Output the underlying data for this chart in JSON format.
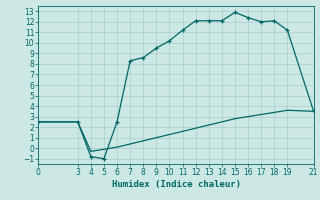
{
  "xlabel": "Humidex (Indice chaleur)",
  "background_color": "#cce8e4",
  "line_color": "#006666",
  "grid_color": "#aacccc",
  "xlim": [
    0,
    21
  ],
  "ylim": [
    -1.5,
    13.5
  ],
  "xticks": [
    0,
    3,
    4,
    5,
    6,
    7,
    8,
    9,
    10,
    11,
    12,
    13,
    14,
    15,
    16,
    17,
    18,
    19,
    21
  ],
  "yticks": [
    -1,
    0,
    1,
    2,
    3,
    4,
    5,
    6,
    7,
    8,
    9,
    10,
    11,
    12,
    13
  ],
  "line1_x": [
    0,
    3,
    4,
    5,
    6,
    7,
    8,
    9,
    10,
    11,
    12,
    13,
    14,
    15,
    16,
    17,
    18,
    19,
    21
  ],
  "line1_y": [
    2.5,
    2.5,
    -0.8,
    -1.0,
    2.5,
    8.3,
    8.6,
    9.5,
    10.2,
    11.2,
    12.1,
    12.1,
    12.1,
    12.9,
    12.4,
    12.0,
    12.1,
    11.2,
    3.5
  ],
  "line2_x": [
    0,
    3,
    4,
    5,
    6,
    7,
    8,
    9,
    10,
    11,
    12,
    13,
    14,
    15,
    16,
    17,
    18,
    19,
    21
  ],
  "line2_y": [
    2.5,
    2.5,
    -0.3,
    -0.1,
    0.1,
    0.4,
    0.7,
    1.0,
    1.3,
    1.6,
    1.9,
    2.2,
    2.5,
    2.8,
    3.0,
    3.2,
    3.4,
    3.6,
    3.5
  ],
  "tick_fontsize": 5.5,
  "xlabel_fontsize": 6.5
}
